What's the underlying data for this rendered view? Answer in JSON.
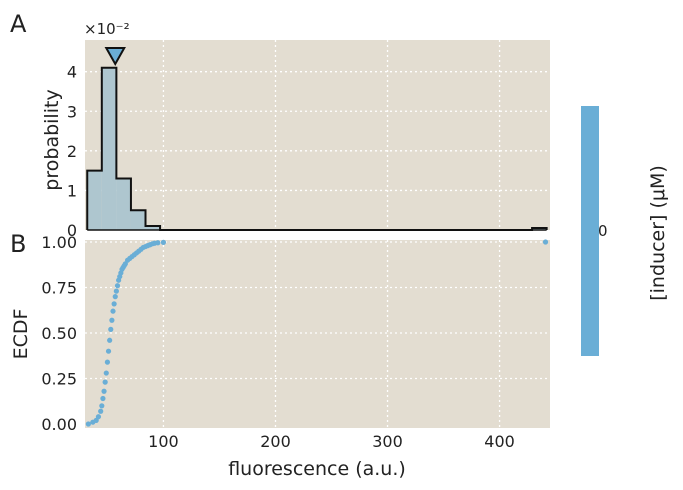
{
  "panel_labels": [
    "A",
    "B"
  ],
  "colors": {
    "plot_bg": "#e3ddd1",
    "accent": "#6aaed6",
    "hist_fill": "#aec6cf",
    "edge": "#111111"
  },
  "chart_data": [
    {
      "type": "bar",
      "panel": "A",
      "ylabel": "probability",
      "offset_text": "×10⁻²",
      "xlim": [
        30,
        445
      ],
      "ylim": [
        0,
        4.8
      ],
      "yticks": [
        0,
        1,
        2,
        3,
        4
      ],
      "bin_edges": [
        32,
        45,
        58,
        71,
        84,
        97,
        110,
        429,
        442
      ],
      "values": [
        1.5,
        4.1,
        1.3,
        0.5,
        0.1,
        0,
        0,
        0.05
      ],
      "marker": {
        "shape": "triangle-down",
        "x": 57
      },
      "grid": true
    },
    {
      "type": "scatter",
      "panel": "B",
      "xlabel": "fluorescence (a.u.)",
      "ylabel": "ECDF",
      "xlim": [
        30,
        445
      ],
      "ylim": [
        0,
        1
      ],
      "xticks": [
        100,
        200,
        300,
        400
      ],
      "ytick_labels": [
        "0.00",
        "0.25",
        "0.50",
        "0.75",
        "1.00"
      ],
      "series": [
        {
          "x": [
            33,
            37,
            40,
            42,
            44,
            45,
            46,
            47,
            48,
            49,
            50,
            51,
            52,
            53,
            54,
            55,
            56,
            57,
            58,
            59,
            60,
            61,
            62,
            63,
            64,
            65,
            66,
            68,
            70,
            72,
            74,
            76,
            78,
            80,
            82,
            84,
            86,
            88,
            90,
            92,
            95,
            100,
            441
          ],
          "y": [
            0.0,
            0.01,
            0.02,
            0.04,
            0.07,
            0.1,
            0.14,
            0.18,
            0.23,
            0.28,
            0.34,
            0.4,
            0.46,
            0.52,
            0.57,
            0.62,
            0.66,
            0.7,
            0.73,
            0.76,
            0.79,
            0.81,
            0.83,
            0.85,
            0.86,
            0.87,
            0.88,
            0.9,
            0.91,
            0.92,
            0.93,
            0.94,
            0.95,
            0.96,
            0.97,
            0.975,
            0.98,
            0.985,
            0.99,
            0.993,
            0.996,
            0.998,
            1.0
          ]
        }
      ],
      "grid": true
    }
  ],
  "colorbar": {
    "label": "[inducer] (μM)",
    "tick": "0",
    "color": "#6aaed6"
  }
}
